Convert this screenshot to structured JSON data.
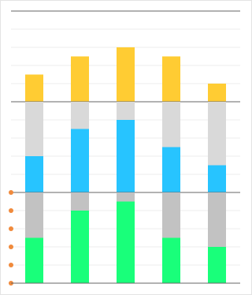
{
  "chart_data": [
    {
      "type": "bar",
      "stacked": true,
      "categories": [
        null,
        null,
        null,
        null,
        null
      ],
      "series": [
        {
          "color": "#ffcc33",
          "values": [
            30,
            50,
            60,
            50,
            20
          ]
        }
      ],
      "ylim": [
        0,
        100
      ],
      "yticks": [
        0,
        20,
        40,
        60,
        80,
        100
      ],
      "grid": true
    },
    {
      "type": "bar",
      "stacked": true,
      "categories": [
        null,
        null,
        null,
        null,
        null
      ],
      "series": [
        {
          "color": "#27c4ff",
          "values": [
            40,
            70,
            80,
            50,
            30
          ]
        },
        {
          "color": "#d9d9d9",
          "values": [
            60,
            30,
            20,
            50,
            70
          ]
        }
      ],
      "ylim": [
        0,
        100
      ],
      "yticks": [
        0,
        20,
        40,
        60,
        80,
        100
      ],
      "grid": true
    },
    {
      "type": "bar",
      "stacked": true,
      "categories": [
        null,
        null,
        null,
        null,
        null
      ],
      "series": [
        {
          "color": "#19ff7a",
          "values": [
            50,
            80,
            90,
            50,
            40
          ]
        },
        {
          "color": "#c2c2c2",
          "values": [
            50,
            20,
            10,
            50,
            60
          ]
        }
      ],
      "ylim": [
        0,
        100
      ],
      "yticks": [
        0,
        20,
        40,
        60,
        80,
        100
      ],
      "grid": true,
      "tick_marker_color": "#f08a3c"
    }
  ]
}
